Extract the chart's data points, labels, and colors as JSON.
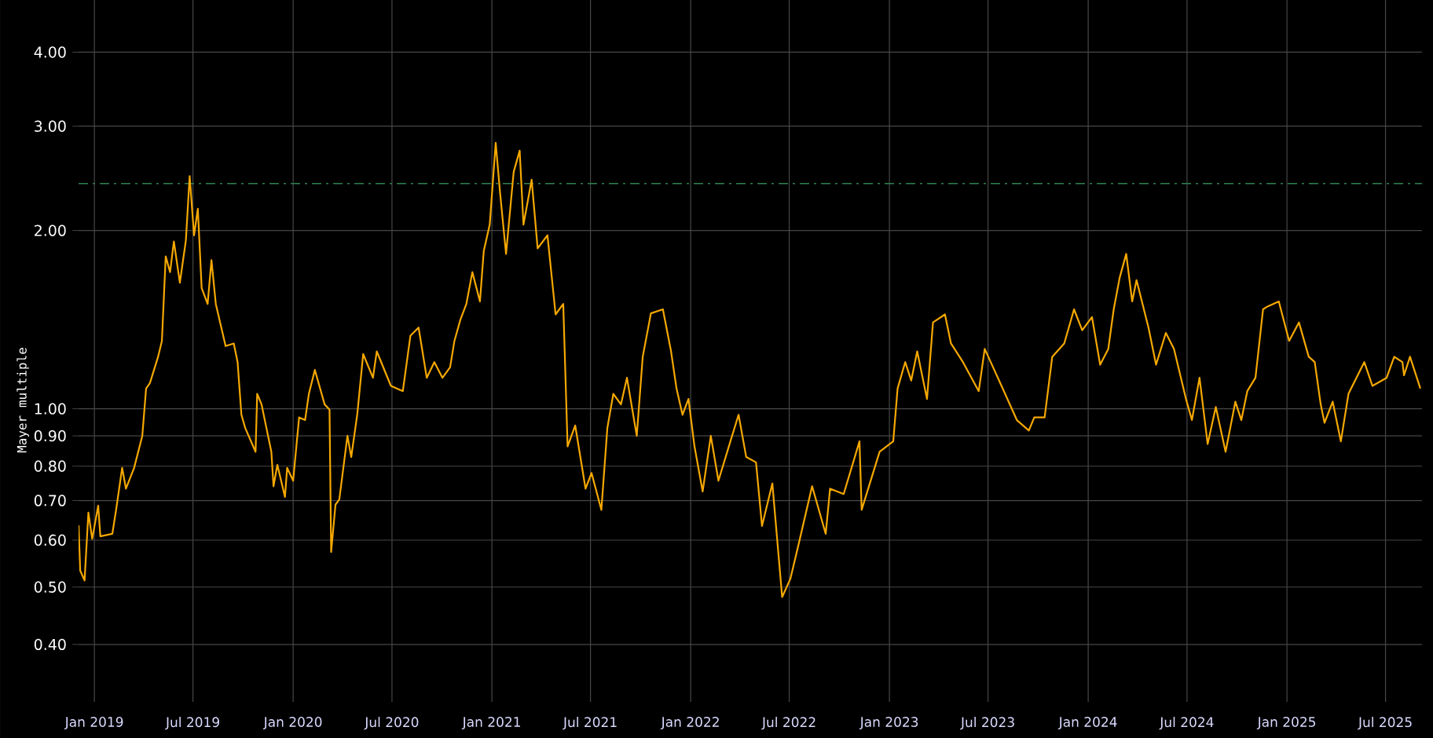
{
  "chart_data": {
    "type": "line",
    "ylabel": "Mayer multiple",
    "log": true,
    "grid": true,
    "xlim": [
      "2018-12-03",
      "2025-09-06"
    ],
    "ylim": [
      0.32,
      4.9
    ],
    "xticks": [
      {
        "value": "2019-01-01",
        "label": "Jan 2019"
      },
      {
        "value": "2019-07-01",
        "label": "Jul 2019"
      },
      {
        "value": "2020-01-01",
        "label": "Jan 2020"
      },
      {
        "value": "2020-07-01",
        "label": "Jul 2020"
      },
      {
        "value": "2021-01-01",
        "label": "Jan 2021"
      },
      {
        "value": "2021-07-01",
        "label": "Jul 2021"
      },
      {
        "value": "2022-01-01",
        "label": "Jan 2022"
      },
      {
        "value": "2022-07-01",
        "label": "Jul 2022"
      },
      {
        "value": "2023-01-01",
        "label": "Jan 2023"
      },
      {
        "value": "2023-07-01",
        "label": "Jul 2023"
      },
      {
        "value": "2024-01-01",
        "label": "Jan 2024"
      },
      {
        "value": "2024-07-01",
        "label": "Jul 2024"
      },
      {
        "value": "2025-01-01",
        "label": "Jan 2025"
      },
      {
        "value": "2025-07-01",
        "label": "Jul 2025"
      }
    ],
    "yticks": [
      {
        "value": 0.4,
        "label": "0.40"
      },
      {
        "value": 0.5,
        "label": "0.50"
      },
      {
        "value": 0.6,
        "label": "0.60"
      },
      {
        "value": 0.7,
        "label": "0.70"
      },
      {
        "value": 0.8,
        "label": "0.80"
      },
      {
        "value": 0.9,
        "label": "0.90"
      },
      {
        "value": 1,
        "label": "1.00"
      },
      {
        "value": 2,
        "label": "2.00"
      },
      {
        "value": 3,
        "label": "3.00"
      },
      {
        "value": 4,
        "label": "4.00"
      }
    ],
    "ref_lines": [
      {
        "axis": "y",
        "value": 2.4,
        "color": "#2e7d4f"
      }
    ],
    "x": [
      "2018-12-03",
      "2018-12-06",
      "2018-12-14",
      "2018-12-21",
      "2018-12-28",
      "2019-01-08",
      "2019-01-12",
      "2019-02-03",
      "2019-02-10",
      "2019-02-21",
      "2019-02-28",
      "2019-03-15",
      "2019-03-30",
      "2019-04-06",
      "2019-04-13",
      "2019-04-28",
      "2019-05-05",
      "2019-05-12",
      "2019-05-20",
      "2019-05-27",
      "2019-06-07",
      "2019-06-18",
      "2019-06-25",
      "2019-07-03",
      "2019-07-10",
      "2019-07-17",
      "2019-07-28",
      "2019-08-04",
      "2019-08-12",
      "2019-08-30",
      "2019-09-14",
      "2019-09-21",
      "2019-09-28",
      "2019-10-05",
      "2019-10-24",
      "2019-10-27",
      "2019-11-04",
      "2019-11-22",
      "2019-11-26",
      "2019-12-03",
      "2019-12-17",
      "2019-12-21",
      "2020-01-01",
      "2020-01-12",
      "2020-01-23",
      "2020-01-30",
      "2020-02-10",
      "2020-02-28",
      "2020-03-08",
      "2020-03-11",
      "2020-03-19",
      "2020-03-26",
      "2020-04-10",
      "2020-04-17",
      "2020-04-28",
      "2020-05-09",
      "2020-05-27",
      "2020-06-03",
      "2020-06-29",
      "2020-07-21",
      "2020-08-04",
      "2020-08-19",
      "2020-09-03",
      "2020-09-17",
      "2020-10-02",
      "2020-10-16",
      "2020-10-24",
      "2020-11-04",
      "2020-11-15",
      "2020-11-26",
      "2020-12-10",
      "2020-12-17",
      "2020-12-28",
      "2021-01-08",
      "2021-01-16",
      "2021-01-27",
      "2021-02-10",
      "2021-02-21",
      "2021-02-28",
      "2021-03-15",
      "2021-03-26",
      "2021-04-13",
      "2021-04-28",
      "2021-05-12",
      "2021-05-20",
      "2021-06-03",
      "2021-06-22",
      "2021-07-03",
      "2021-07-21",
      "2021-08-01",
      "2021-08-12",
      "2021-08-26",
      "2021-09-06",
      "2021-09-24",
      "2021-10-05",
      "2021-10-20",
      "2021-11-11",
      "2021-11-26",
      "2021-12-06",
      "2021-12-17",
      "2021-12-28",
      "2022-01-08",
      "2022-01-23",
      "2022-02-07",
      "2022-02-21",
      "2022-03-15",
      "2022-03-30",
      "2022-04-13",
      "2022-05-01",
      "2022-05-12",
      "2022-05-31",
      "2022-06-18",
      "2022-07-03",
      "2022-07-17",
      "2022-08-12",
      "2022-09-06",
      "2022-09-14",
      "2022-10-09",
      "2022-11-07",
      "2022-11-11",
      "2022-12-14",
      "2023-01-08",
      "2023-01-16",
      "2023-01-30",
      "2023-02-10",
      "2023-02-21",
      "2023-03-11",
      "2023-03-22",
      "2023-04-13",
      "2023-04-24",
      "2023-05-16",
      "2023-06-14",
      "2023-06-25",
      "2023-07-28",
      "2023-08-23",
      "2023-09-14",
      "2023-09-24",
      "2023-10-13",
      "2023-10-27",
      "2023-11-18",
      "2023-12-06",
      "2023-12-21",
      "2024-01-08",
      "2024-01-23",
      "2024-02-07",
      "2024-02-17",
      "2024-02-28",
      "2024-03-11",
      "2024-03-22",
      "2024-03-30",
      "2024-04-21",
      "2024-05-05",
      "2024-05-23",
      "2024-06-07",
      "2024-06-29",
      "2024-07-10",
      "2024-07-24",
      "2024-08-08",
      "2024-08-23",
      "2024-09-10",
      "2024-09-28",
      "2024-10-09",
      "2024-10-20",
      "2024-11-04",
      "2024-11-18",
      "2024-11-26",
      "2024-12-17",
      "2025-01-05",
      "2025-01-23",
      "2025-02-10",
      "2025-02-21",
      "2025-03-04",
      "2025-03-11",
      "2025-03-26",
      "2025-04-10",
      "2025-04-24",
      "2025-05-23",
      "2025-06-07",
      "2025-07-03",
      "2025-07-17",
      "2025-08-01",
      "2025-08-04",
      "2025-08-15",
      "2025-09-03"
    ],
    "series": [
      {
        "color": "#f5a800",
        "values": [
          0.636,
          0.533,
          0.513,
          0.668,
          0.603,
          0.686,
          0.609,
          0.615,
          0.676,
          0.795,
          0.733,
          0.795,
          0.9,
          1.082,
          1.105,
          1.224,
          1.302,
          1.809,
          1.701,
          1.916,
          1.632,
          1.924,
          2.471,
          1.963,
          2.176,
          1.599,
          1.503,
          1.782,
          1.503,
          1.276,
          1.289,
          1.199,
          0.977,
          0.928,
          0.846,
          1.06,
          1.017,
          0.846,
          0.74,
          0.804,
          0.71,
          0.795,
          0.756,
          0.967,
          0.957,
          1.06,
          1.163,
          1.017,
          0.997,
          0.573,
          0.689,
          0.703,
          0.9,
          0.829,
          0.977,
          1.237,
          1.128,
          1.25,
          1.093,
          1.071,
          1.329,
          1.371,
          1.128,
          1.199,
          1.128,
          1.175,
          1.302,
          1.414,
          1.503,
          1.701,
          1.518,
          1.846,
          2.046,
          2.812,
          2.315,
          1.826,
          2.512,
          2.728,
          2.046,
          2.436,
          1.866,
          1.963,
          1.443,
          1.503,
          0.864,
          0.937,
          0.733,
          0.779,
          0.675,
          0.928,
          1.06,
          1.017,
          1.128,
          0.9,
          1.224,
          1.449,
          1.472,
          1.25,
          1.082,
          0.977,
          1.039,
          0.864,
          0.725,
          0.9,
          0.756,
          0.881,
          0.977,
          0.829,
          0.812,
          0.634,
          0.748,
          0.481,
          0.516,
          0.584,
          0.74,
          0.615,
          0.733,
          0.718,
          0.881,
          0.675,
          0.846,
          0.881,
          1.082,
          1.199,
          1.116,
          1.25,
          1.039,
          1.399,
          1.443,
          1.289,
          1.199,
          1.071,
          1.262,
          1.082,
          0.957,
          0.919,
          0.967,
          0.967,
          1.224,
          1.289,
          1.472,
          1.357,
          1.428,
          1.187,
          1.262,
          1.472,
          1.665,
          1.826,
          1.518,
          1.649,
          1.371,
          1.187,
          1.343,
          1.262,
          1.039,
          0.957,
          1.128,
          0.872,
          1.007,
          0.846,
          1.028,
          0.957,
          1.071,
          1.128,
          1.472,
          1.488,
          1.518,
          1.302,
          1.399,
          1.224,
          1.199,
          1.017,
          0.947,
          1.028,
          0.881,
          1.06,
          1.199,
          1.093,
          1.128,
          1.224,
          1.199,
          1.139,
          1.224,
          1.082
        ]
      }
    ]
  }
}
